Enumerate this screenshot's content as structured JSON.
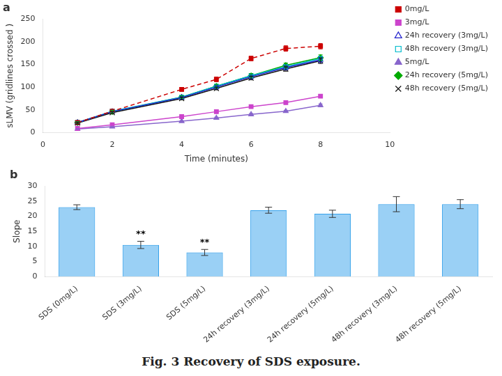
{
  "title": "Fig. 3  Recovery of SDS exposure.",
  "chart_data": [
    {
      "type": "line",
      "title": "a",
      "x": [
        1,
        2,
        4,
        5,
        6,
        7,
        8
      ],
      "xlabel": "Time (minutes)",
      "ylabel": "sLMV (gridlines crossed )",
      "series": [
        {
          "name": "0mg/L",
          "color": "#cc0000",
          "line_style": "dashed",
          "marker": "square",
          "values": [
            22,
            47,
            95,
            117,
            163,
            185,
            190
          ],
          "errors": [
            2,
            3,
            4,
            5,
            5,
            6,
            6
          ]
        },
        {
          "name": "3mg/L",
          "color": "#cc44cc",
          "line_style": "solid",
          "marker": "square",
          "values": [
            9,
            17,
            35,
            46,
            57,
            66,
            80
          ],
          "errors": [
            1,
            1,
            2,
            2,
            2,
            2,
            3
          ]
        },
        {
          "name": "24h recovery (3mg/L)",
          "color": "#2222cc",
          "line_style": "solid",
          "marker": "open-triangle",
          "values": [
            22,
            46,
            77,
            100,
            123,
            143,
            160
          ],
          "errors": [
            2,
            3,
            3,
            4,
            5,
            5,
            6
          ]
        },
        {
          "name": "48h recovery (3mg/L)",
          "color": "#00bbcc",
          "line_style": "solid",
          "marker": "open-square",
          "values": [
            22,
            47,
            78,
            102,
            125,
            145,
            163
          ],
          "errors": [
            2,
            2,
            3,
            4,
            4,
            5,
            5
          ]
        },
        {
          "name": "5mg/L",
          "color": "#8866cc",
          "line_style": "solid",
          "marker": "triangle",
          "values": [
            8,
            13,
            25,
            32,
            40,
            47,
            60
          ],
          "errors": [
            1,
            1,
            1,
            2,
            2,
            2,
            3
          ]
        },
        {
          "name": "24h recovery (5mg/L)",
          "color": "#00aa00",
          "line_style": "solid",
          "marker": "diamond",
          "values": [
            22,
            46,
            78,
            102,
            125,
            148,
            165
          ],
          "errors": [
            2,
            3,
            3,
            4,
            5,
            5,
            6
          ]
        },
        {
          "name": "48h recovery (5mg/L)",
          "color": "#111111",
          "line_style": "solid",
          "marker": "x",
          "values": [
            21,
            44,
            75,
            97,
            120,
            140,
            158
          ],
          "errors": [
            2,
            2,
            3,
            3,
            4,
            5,
            6
          ]
        }
      ],
      "xlim": [
        0,
        10
      ],
      "xticks": [
        0,
        2,
        4,
        6,
        8,
        10
      ],
      "ylim": [
        0,
        250
      ],
      "yticks": [
        0,
        50,
        100,
        150,
        200,
        250
      ],
      "grid": false,
      "legend": "upper right"
    },
    {
      "type": "bar",
      "title": "b",
      "categories": [
        "SDS (0mg/L)",
        "SDS (3mg/L)",
        "SDS (5mg/L)",
        "24h recovery (3mg/L)",
        "24h recovery (5mg/L)",
        "48h recovery (3mg/L)",
        "48h recovery (5mg/L)"
      ],
      "values": [
        23.0,
        10.5,
        8.0,
        22.0,
        20.8,
        24.0,
        24.0
      ],
      "errors": [
        0.8,
        1.2,
        1.0,
        1.0,
        1.2,
        2.5,
        1.5
      ],
      "ylabel": "Slope",
      "ylim": [
        0,
        30
      ],
      "yticks": [
        0,
        5,
        10,
        15,
        20,
        25,
        30
      ],
      "grid": false,
      "annotations": [
        {
          "text": "**",
          "x": "SDS (3mg/L)"
        },
        {
          "text": "**",
          "x": "SDS (5mg/L)"
        }
      ]
    }
  ]
}
